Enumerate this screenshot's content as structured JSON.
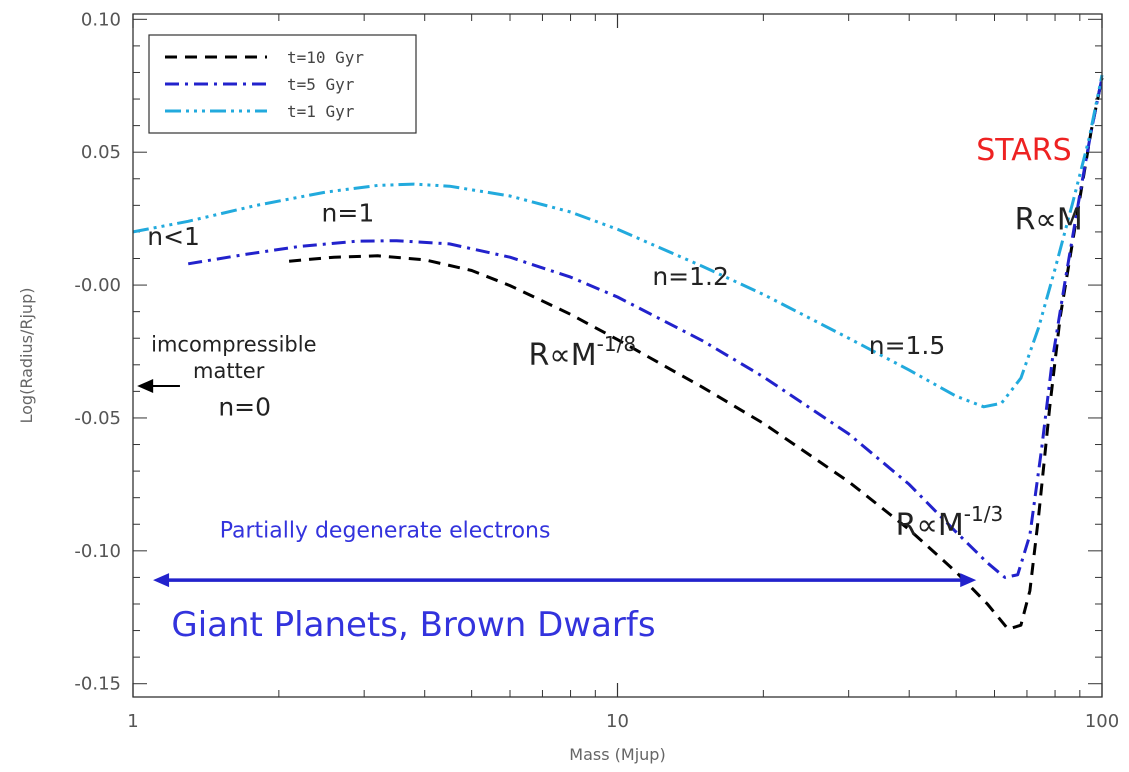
{
  "chart_data": {
    "type": "line",
    "xlabel": "Mass (Mjup)",
    "ylabel": "Log(Radius/Rjup)",
    "xscale": "log",
    "xlim": [
      1,
      100
    ],
    "ylim": [
      -0.155,
      0.102
    ],
    "x_ticks": [
      {
        "value": 1,
        "label": "1"
      },
      {
        "value": 10,
        "label": "10"
      },
      {
        "value": 100,
        "label": "100"
      }
    ],
    "y_ticks": [
      {
        "value": 0.1,
        "label": "0.10"
      },
      {
        "value": 0.05,
        "label": "0.05"
      },
      {
        "value": 0.0,
        "label": "-0.00"
      },
      {
        "value": -0.05,
        "label": "-0.05"
      },
      {
        "value": -0.1,
        "label": "-0.10"
      },
      {
        "value": -0.15,
        "label": "-0.15"
      }
    ],
    "legend_position": "top-left",
    "series": [
      {
        "name": "t=10 Gyr",
        "color": "#000000",
        "dash": "dashed",
        "points": [
          [
            2.1,
            0.009
          ],
          [
            2.6,
            0.0105
          ],
          [
            3.2,
            0.011
          ],
          [
            4.0,
            0.0095
          ],
          [
            5.0,
            0.0055
          ],
          [
            6.0,
            -0.0002
          ],
          [
            8.0,
            -0.011
          ],
          [
            10.0,
            -0.0205
          ],
          [
            15.0,
            -0.0385
          ],
          [
            20.0,
            -0.052
          ],
          [
            30.0,
            -0.074
          ],
          [
            40.0,
            -0.092
          ],
          [
            50.0,
            -0.108
          ],
          [
            58.0,
            -0.12
          ],
          [
            64.0,
            -0.1295
          ],
          [
            68.0,
            -0.128
          ],
          [
            71.0,
            -0.115
          ],
          [
            74.0,
            -0.087
          ],
          [
            78.0,
            -0.046
          ],
          [
            82.0,
            -0.012
          ],
          [
            88.0,
            0.022
          ],
          [
            95.0,
            0.058
          ],
          [
            100.0,
            0.078
          ]
        ]
      },
      {
        "name": "t=5 Gyr",
        "color": "#2222cc",
        "dash": "dashdot",
        "points": [
          [
            1.3,
            0.008
          ],
          [
            1.7,
            0.0115
          ],
          [
            2.2,
            0.0145
          ],
          [
            2.9,
            0.0165
          ],
          [
            3.5,
            0.0167
          ],
          [
            4.5,
            0.0155
          ],
          [
            6.0,
            0.0105
          ],
          [
            8.0,
            0.003
          ],
          [
            10.0,
            -0.0045
          ],
          [
            15.0,
            -0.021
          ],
          [
            20.0,
            -0.0345
          ],
          [
            30.0,
            -0.056
          ],
          [
            40.0,
            -0.075
          ],
          [
            50.0,
            -0.093
          ],
          [
            58.0,
            -0.1045
          ],
          [
            63.0,
            -0.11
          ],
          [
            67.0,
            -0.109
          ],
          [
            71.0,
            -0.094
          ],
          [
            75.0,
            -0.062
          ],
          [
            79.0,
            -0.028
          ],
          [
            84.0,
            0.002
          ],
          [
            90.0,
            0.034
          ],
          [
            95.0,
            0.058
          ],
          [
            100.0,
            0.078
          ]
        ]
      },
      {
        "name": "t=1 Gyr",
        "color": "#22aadd",
        "dash": "dashdotdotdot",
        "points": [
          [
            1.0,
            0.02
          ],
          [
            1.3,
            0.024
          ],
          [
            1.8,
            0.03
          ],
          [
            2.5,
            0.035
          ],
          [
            3.2,
            0.0375
          ],
          [
            3.8,
            0.038
          ],
          [
            4.5,
            0.0372
          ],
          [
            6.0,
            0.0335
          ],
          [
            8.0,
            0.0275
          ],
          [
            10.0,
            0.021
          ],
          [
            15.0,
            0.007
          ],
          [
            20.0,
            -0.0035
          ],
          [
            30.0,
            -0.02
          ],
          [
            40.0,
            -0.032
          ],
          [
            50.0,
            -0.0418
          ],
          [
            57.0,
            -0.0458
          ],
          [
            62.0,
            -0.0445
          ],
          [
            68.0,
            -0.035
          ],
          [
            74.0,
            -0.016
          ],
          [
            80.0,
            0.006
          ],
          [
            87.0,
            0.031
          ],
          [
            94.0,
            0.055
          ],
          [
            100.0,
            0.079
          ]
        ]
      }
    ],
    "annotations": [
      {
        "id": "stars",
        "text": "STARS",
        "color": "#ee2222",
        "x": 55.0,
        "y": 0.047,
        "size": 30
      },
      {
        "id": "r-prop-m",
        "text": "R∝M",
        "color": "#222222",
        "x": 66.0,
        "y": 0.021,
        "size": 30
      },
      {
        "id": "n-lt-1",
        "text": "n<1",
        "color": "#222222",
        "x": 1.07,
        "y": 0.015,
        "size": 25
      },
      {
        "id": "n-eq-1",
        "text": "n=1",
        "color": "#222222",
        "x": 2.45,
        "y": 0.024,
        "size": 25
      },
      {
        "id": "n-eq-1-2",
        "text": "n=1.2",
        "color": "#222222",
        "x": 11.8,
        "y": 0.0,
        "size": 25
      },
      {
        "id": "n-eq-1-5",
        "text": "n=1.5",
        "color": "#222222",
        "x": 33.0,
        "y": -0.026,
        "size": 25
      },
      {
        "id": "incompressible",
        "text": "imcompressible",
        "color": "#222222",
        "x": 1.09,
        "y": -0.025,
        "size": 21
      },
      {
        "id": "matter",
        "text": "matter",
        "color": "#222222",
        "x": 1.33,
        "y": -0.035,
        "size": 21
      },
      {
        "id": "n-eq-0",
        "text": "n=0",
        "color": "#222222",
        "x": 1.5,
        "y": -0.049,
        "size": 25
      },
      {
        "id": "partially-degenerate",
        "text": "Partially degenerate electrons",
        "color": "#3333dd",
        "x": 1.51,
        "y": -0.095,
        "size": 22
      },
      {
        "id": "giant-planets",
        "text": "Giant Planets, Brown Dwarfs",
        "color": "#3333dd",
        "x": 1.2,
        "y": -0.132,
        "size": 34
      }
    ],
    "scaling_laws": [
      {
        "id": "r-m-eighth",
        "base": "R∝M",
        "exponent": "-1/8",
        "color": "#222222",
        "x": 6.55,
        "y": -0.03
      },
      {
        "id": "r-m-third",
        "base": "R∝M",
        "exponent": "-1/3",
        "color": "#222222",
        "x": 37.5,
        "y": -0.094
      }
    ],
    "arrows": [
      {
        "id": "incompressible-arrow",
        "color": "#000000",
        "x1": 1.25,
        "x2": 1.02,
        "y": -0.038
      },
      {
        "id": "range-arrow",
        "color": "#2222cc",
        "x1": 1.1,
        "x2": 55.0,
        "y": -0.111
      }
    ]
  }
}
